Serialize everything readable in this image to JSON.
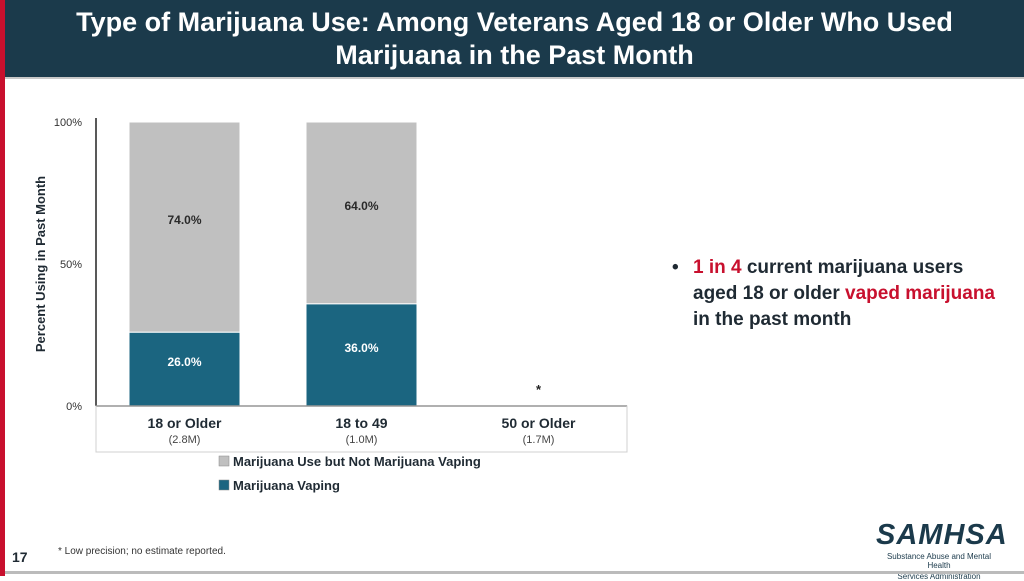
{
  "slide": {
    "title_line1": "Type of Marijuana Use: Among Veterans Aged 18 or Older Who Used",
    "title_line2": "Marijuana in the Past Month",
    "page_number": "17",
    "footnote": "* Low precision; no estimate reported.",
    "logo_name": "SAMHSA",
    "logo_sub_line1": "Substance Abuse and Mental Health",
    "logo_sub_line2": "Services Administration",
    "bullet_dot": "•",
    "bullet_red1": "1 in 4",
    "bullet_text1": " current marijuana users aged 18 or older ",
    "bullet_red2": "vaped marijuana",
    "bullet_text2": " in the past month",
    "colors": {
      "header": "#1b3a4b",
      "accent_red": "#c8102e"
    }
  },
  "chart_data": {
    "type": "bar",
    "stacked": true,
    "ylabel": "Percent Using in Past Month",
    "ylim": [
      0,
      100
    ],
    "yticks": [
      0,
      50,
      100
    ],
    "ytick_labels": [
      "0%",
      "50%",
      "100%"
    ],
    "categories": [
      "18 or Older",
      "18 to 49",
      "50 or Older"
    ],
    "category_sublabels": [
      "(2.8M)",
      "(1.0M)",
      "(1.7M)"
    ],
    "series": [
      {
        "name": "Marijuana Vaping",
        "color": "#1b6580",
        "label_color": "#ffffff",
        "values": [
          26.0,
          36.0,
          null
        ],
        "labels": [
          "26.0%",
          "36.0%",
          null
        ]
      },
      {
        "name": "Marijuana Use but Not Marijuana Vaping",
        "color": "#c0c0c0",
        "label_color": "#2a2a2a",
        "values": [
          74.0,
          64.0,
          null
        ],
        "labels": [
          "74.0%",
          "64.0%",
          null
        ]
      }
    ],
    "missing_marker": "*",
    "legend_order": [
      1,
      0
    ],
    "legend_position": "bottom-center"
  }
}
